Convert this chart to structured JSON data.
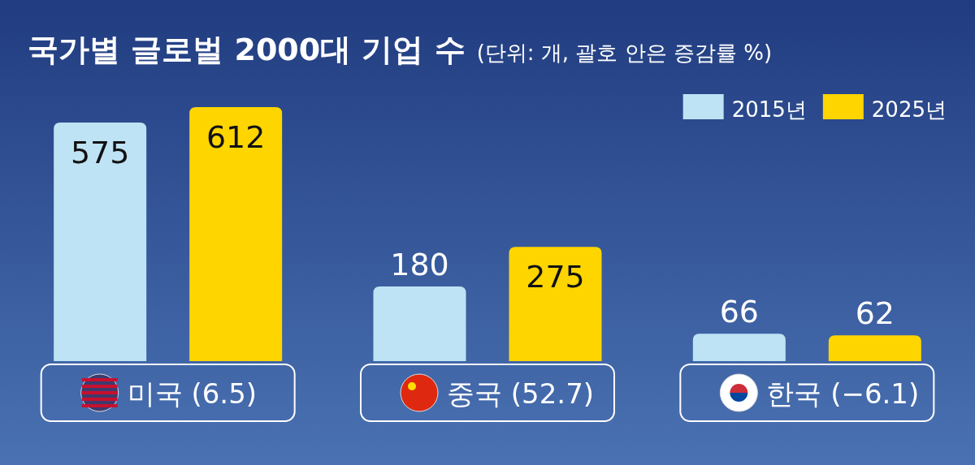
{
  "chart_data": {
    "type": "bar",
    "title": "국가별 글로벌 2000대 기업 수",
    "subtitle": "(단위: 개, 괄호 안은 증감률 %)",
    "categories": [
      "미국 (6.5)",
      "중국 (52.7)",
      "한국 (−6.1)"
    ],
    "series": [
      {
        "name": "2015년",
        "color": "#bee3f4",
        "values": [
          575,
          180,
          66
        ]
      },
      {
        "name": "2025년",
        "color": "#ffd500",
        "values": [
          612,
          275,
          62
        ]
      }
    ],
    "data_labels": true,
    "legend": "top right"
  }
}
